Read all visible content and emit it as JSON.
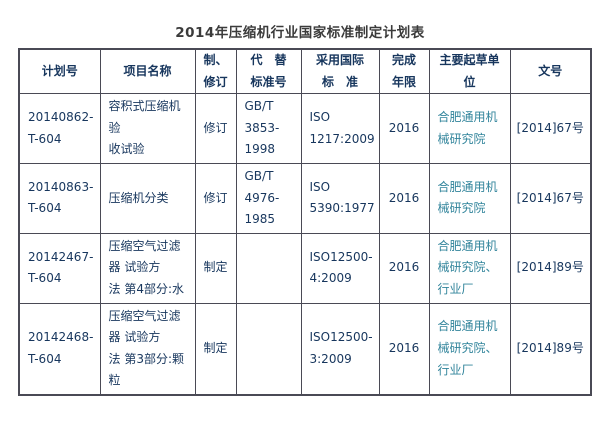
{
  "title": "2014年压缩机行业国家标准制定计划表",
  "colors": {
    "text_navy": "#17365d",
    "text_teal": "#31849b",
    "title_text": "#3b3b3b",
    "border": "#4a4a55",
    "background": "#ffffff"
  },
  "table": {
    "columns": [
      {
        "key": "plan-no",
        "label": "计划号"
      },
      {
        "key": "project-name",
        "label": "项目名称"
      },
      {
        "key": "new-or-revision",
        "label": "制、\n修订"
      },
      {
        "key": "replaced-std-no",
        "label": "代　替\n标准号"
      },
      {
        "key": "intl-standard",
        "label": "采用国际\n标　准"
      },
      {
        "key": "completion-year",
        "label": "完成\n年限"
      },
      {
        "key": "drafting-unit",
        "label": "主要起草单\n位"
      },
      {
        "key": "doc-no",
        "label": "文号"
      }
    ],
    "rows": [
      [
        "20140862-\nT-604",
        "容积式压缩机验\n收试验",
        "修订",
        "GB/T\n3853-\n1998",
        "ISO\n1217:2009",
        "2016",
        "合肥通用机\n械研究院",
        "[2014]67号"
      ],
      [
        "20140863-\nT-604",
        "压缩机分类",
        "修订",
        "GB/T\n4976-\n1985",
        "ISO\n5390:1977",
        "2016",
        "合肥通用机\n械研究院",
        "[2014]67号"
      ],
      [
        "20142467-\nT-604",
        "压缩空气过滤\n器 试验方\n法 第4部分:水",
        "制定",
        "",
        "ISO12500-\n4:2009",
        "2016",
        "合肥通用机\n械研究院、\n行业厂",
        "[2014]89号"
      ],
      [
        "20142468-\nT-604",
        "压缩空气过滤\n器 试验方\n法 第3部分:颗\n粒",
        "制定",
        "",
        "ISO12500-\n3:2009",
        "2016",
        "合肥通用机\n械研究院、\n行业厂",
        "[2014]89号"
      ]
    ]
  }
}
